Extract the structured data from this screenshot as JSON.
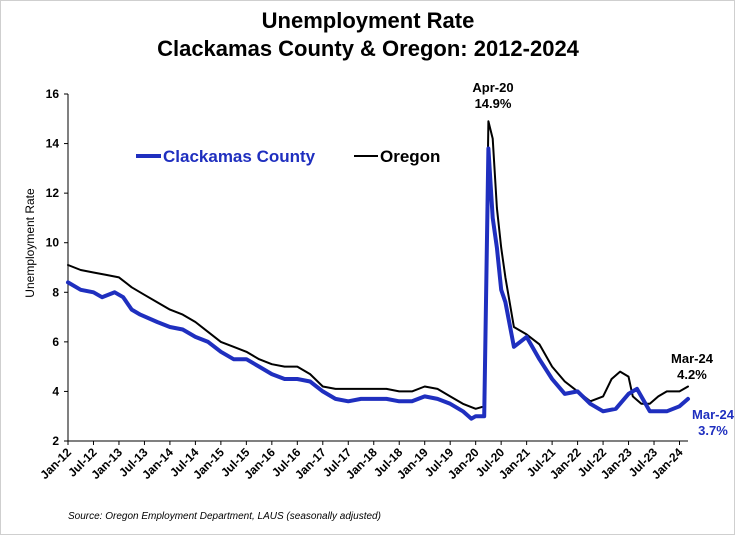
{
  "chart_data": {
    "type": "line",
    "title_line1": "Unemployment Rate",
    "title_line2": "Clackamas County & Oregon: 2012-2024",
    "ylabel": "Unemployment Rate",
    "xlabel": "",
    "ylim": [
      2,
      16
    ],
    "yticks": [
      "2",
      "4",
      "6",
      "8",
      "10",
      "12",
      "14",
      "16"
    ],
    "grid": false,
    "legend": "top-left",
    "x_tick_labels": [
      "Jan-12",
      "Jul-12",
      "Jan-13",
      "Jul-13",
      "Jan-14",
      "Jul-14",
      "Jan-15",
      "Jul-15",
      "Jan-16",
      "Jul-16",
      "Jan-17",
      "Jul-17",
      "Jan-18",
      "Jul-18",
      "Jan-19",
      "Jul-19",
      "Jan-20",
      "Jul-20",
      "Jan-21",
      "Jul-21",
      "Jan-22",
      "Jul-22",
      "Jan-23",
      "Jul-23",
      "Jan-24"
    ],
    "x_start": "Jan-12",
    "x_end": "Mar-24",
    "series": [
      {
        "name": "Clackamas County",
        "color": "#1f2fbf",
        "points": [
          [
            "Jan-12",
            8.4
          ],
          [
            "Apr-12",
            8.1
          ],
          [
            "Jul-12",
            8.0
          ],
          [
            "Sep-12",
            7.8
          ],
          [
            "Dec-12",
            8.0
          ],
          [
            "Feb-13",
            7.8
          ],
          [
            "Apr-13",
            7.3
          ],
          [
            "Jun-13",
            7.1
          ],
          [
            "Oct-13",
            6.8
          ],
          [
            "Jan-14",
            6.6
          ],
          [
            "Apr-14",
            6.5
          ],
          [
            "Jul-14",
            6.2
          ],
          [
            "Oct-14",
            6.0
          ],
          [
            "Jan-15",
            5.6
          ],
          [
            "Apr-15",
            5.3
          ],
          [
            "Jul-15",
            5.3
          ],
          [
            "Oct-15",
            5.0
          ],
          [
            "Jan-16",
            4.7
          ],
          [
            "Apr-16",
            4.5
          ],
          [
            "Jul-16",
            4.5
          ],
          [
            "Oct-16",
            4.4
          ],
          [
            "Jan-17",
            4.0
          ],
          [
            "Apr-17",
            3.7
          ],
          [
            "Jul-17",
            3.6
          ],
          [
            "Oct-17",
            3.7
          ],
          [
            "Jan-18",
            3.7
          ],
          [
            "Apr-18",
            3.7
          ],
          [
            "Jul-18",
            3.6
          ],
          [
            "Oct-18",
            3.6
          ],
          [
            "Jan-19",
            3.8
          ],
          [
            "Apr-19",
            3.7
          ],
          [
            "Jul-19",
            3.5
          ],
          [
            "Oct-19",
            3.2
          ],
          [
            "Dec-19",
            2.9
          ],
          [
            "Jan-20",
            3.0
          ],
          [
            "Mar-20",
            3.0
          ],
          [
            "Apr-20",
            13.8
          ],
          [
            "May-20",
            11.0
          ],
          [
            "Jun-20",
            9.8
          ],
          [
            "Jul-20",
            8.1
          ],
          [
            "Aug-20",
            7.6
          ],
          [
            "Oct-20",
            5.8
          ],
          [
            "Jan-21",
            6.2
          ],
          [
            "Apr-21",
            5.3
          ],
          [
            "Jul-21",
            4.5
          ],
          [
            "Oct-21",
            3.9
          ],
          [
            "Jan-22",
            4.0
          ],
          [
            "Apr-22",
            3.5
          ],
          [
            "Jul-22",
            3.2
          ],
          [
            "Oct-22",
            3.3
          ],
          [
            "Jan-23",
            3.9
          ],
          [
            "Mar-23",
            4.1
          ],
          [
            "Apr-23",
            3.8
          ],
          [
            "Jun-23",
            3.2
          ],
          [
            "Oct-23",
            3.2
          ],
          [
            "Jan-24",
            3.4
          ],
          [
            "Mar-24",
            3.7
          ]
        ]
      },
      {
        "name": "Oregon",
        "color": "#000000",
        "points": [
          [
            "Jan-12",
            9.1
          ],
          [
            "Apr-12",
            8.9
          ],
          [
            "Jul-12",
            8.8
          ],
          [
            "Oct-12",
            8.7
          ],
          [
            "Jan-13",
            8.6
          ],
          [
            "Apr-13",
            8.2
          ],
          [
            "Jul-13",
            7.9
          ],
          [
            "Oct-13",
            7.6
          ],
          [
            "Jan-14",
            7.3
          ],
          [
            "Apr-14",
            7.1
          ],
          [
            "Jul-14",
            6.8
          ],
          [
            "Oct-14",
            6.4
          ],
          [
            "Jan-15",
            6.0
          ],
          [
            "Apr-15",
            5.8
          ],
          [
            "Jul-15",
            5.6
          ],
          [
            "Oct-15",
            5.3
          ],
          [
            "Jan-16",
            5.1
          ],
          [
            "Apr-16",
            5.0
          ],
          [
            "Jul-16",
            5.0
          ],
          [
            "Oct-16",
            4.7
          ],
          [
            "Jan-17",
            4.2
          ],
          [
            "Apr-17",
            4.1
          ],
          [
            "Jul-17",
            4.1
          ],
          [
            "Oct-17",
            4.1
          ],
          [
            "Jan-18",
            4.1
          ],
          [
            "Apr-18",
            4.1
          ],
          [
            "Jul-18",
            4.0
          ],
          [
            "Oct-18",
            4.0
          ],
          [
            "Jan-19",
            4.2
          ],
          [
            "Apr-19",
            4.1
          ],
          [
            "Jul-19",
            3.8
          ],
          [
            "Oct-19",
            3.5
          ],
          [
            "Jan-20",
            3.3
          ],
          [
            "Mar-20",
            3.4
          ],
          [
            "Apr-20",
            14.9
          ],
          [
            "May-20",
            14.2
          ],
          [
            "Jun-20",
            11.4
          ],
          [
            "Jul-20",
            9.8
          ],
          [
            "Aug-20",
            8.6
          ],
          [
            "Oct-20",
            6.6
          ],
          [
            "Jan-21",
            6.3
          ],
          [
            "Apr-21",
            5.9
          ],
          [
            "Jul-21",
            5.0
          ],
          [
            "Oct-21",
            4.4
          ],
          [
            "Jan-22",
            4.0
          ],
          [
            "Apr-22",
            3.6
          ],
          [
            "Jul-22",
            3.8
          ],
          [
            "Sep-22",
            4.5
          ],
          [
            "Nov-22",
            4.8
          ],
          [
            "Jan-23",
            4.6
          ],
          [
            "Feb-23",
            3.8
          ],
          [
            "Apr-23",
            3.5
          ],
          [
            "Jun-23",
            3.5
          ],
          [
            "Aug-23",
            3.8
          ],
          [
            "Oct-23",
            4.0
          ],
          [
            "Jan-24",
            4.0
          ],
          [
            "Mar-24",
            4.2
          ]
        ]
      }
    ],
    "annotations": {
      "peak_date": "Apr-20",
      "peak_value": "14.9%",
      "oregon_end_date": "Mar-24",
      "oregon_end_value": "4.2%",
      "clackamas_end_date": "Mar-24",
      "clackamas_end_value": "3.7%"
    },
    "source": "Source: Oregon Employment Department, LAUS (seasonally adjusted)"
  }
}
